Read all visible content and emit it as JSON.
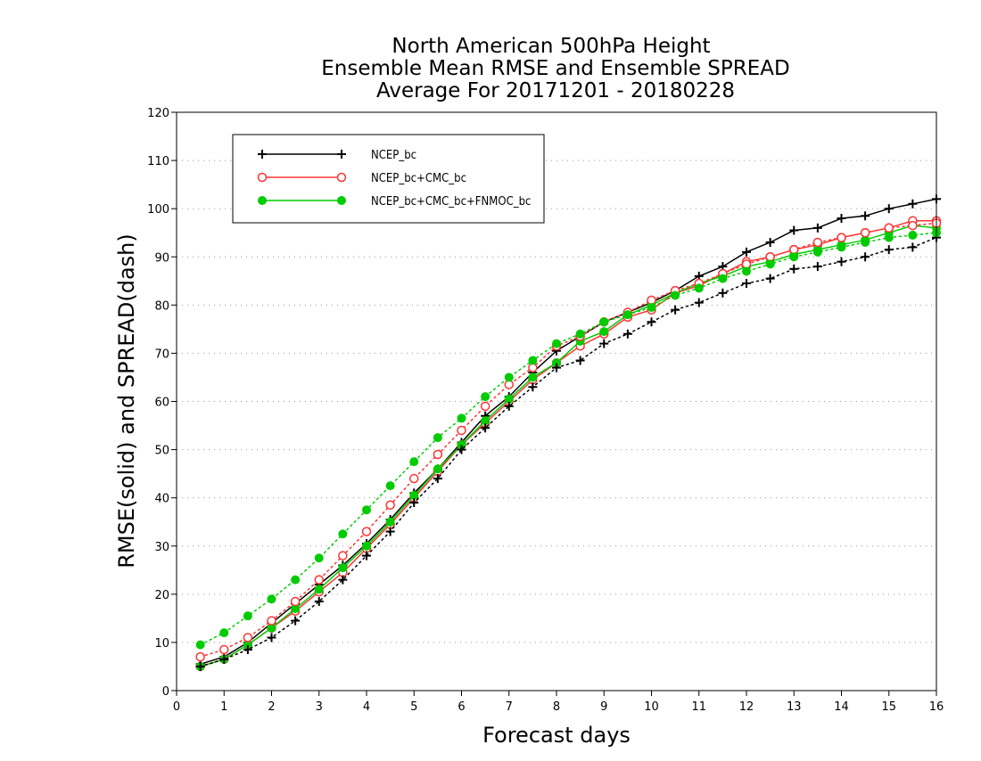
{
  "chart_data": {
    "type": "line",
    "title_lines": [
      "North American 500hPa Height",
      "Ensemble Mean RMSE and Ensemble SPREAD",
      "Average For 20171201 - 20180228"
    ],
    "xlabel": "Forecast days",
    "ylabel": "RMSE(solid) and SPREAD(dash)",
    "xlim": [
      0,
      16
    ],
    "ylim": [
      0,
      120
    ],
    "x_ticks": [
      0,
      1,
      2,
      3,
      4,
      5,
      6,
      7,
      8,
      9,
      10,
      11,
      12,
      13,
      14,
      15,
      16
    ],
    "y_ticks": [
      0,
      10,
      20,
      30,
      40,
      50,
      60,
      70,
      80,
      90,
      100,
      110,
      120
    ],
    "grid": "horizontal dotted",
    "legend_position": "top-left",
    "x": [
      0.5,
      1,
      1.5,
      2,
      2.5,
      3,
      3.5,
      4,
      4.5,
      5,
      5.5,
      6,
      6.5,
      7,
      7.5,
      8,
      8.5,
      9,
      9.5,
      10,
      10.5,
      11,
      11.5,
      12,
      12.5,
      13,
      13.5,
      14,
      14.5,
      15,
      15.5,
      16
    ],
    "series": [
      {
        "name": "NCEP_bc",
        "metric": "RMSE",
        "style": "solid",
        "marker": "plus",
        "color": "#000000",
        "values": [
          5.5,
          7,
          10,
          14,
          18,
          22,
          26,
          30.5,
          35.5,
          41,
          46,
          51.5,
          57,
          61,
          66,
          70.5,
          73.5,
          76.5,
          78.5,
          80.5,
          83,
          86,
          88,
          91,
          93,
          95.5,
          96,
          98,
          98.5,
          100,
          101,
          102
        ]
      },
      {
        "name": "NCEP_bc+CMC_bc",
        "metric": "RMSE",
        "style": "solid",
        "marker": "open-circle",
        "color": "#ff3333",
        "values": [
          5,
          6.5,
          9.5,
          13,
          16.5,
          20.5,
          24.5,
          29.5,
          34.5,
          40,
          45.5,
          51,
          55.5,
          60,
          64.5,
          68,
          71.5,
          74,
          77.5,
          79,
          82.5,
          84,
          86.5,
          89,
          90,
          91.5,
          92.5,
          94,
          95,
          96,
          97.5,
          97.5
        ]
      },
      {
        "name": "NCEP_bc+CMC_bc+FNMOC_bc",
        "metric": "RMSE",
        "style": "solid",
        "marker": "filled-circle",
        "color": "#00cc00",
        "values": [
          5,
          6.5,
          9.5,
          13,
          17,
          21,
          25.5,
          30,
          35,
          40.5,
          46,
          51,
          56,
          60.5,
          65,
          68,
          72.5,
          74.5,
          78,
          80,
          82.5,
          84.5,
          86,
          88,
          89,
          90.5,
          91.5,
          92.5,
          93.5,
          95,
          96.5,
          96
        ]
      },
      {
        "name": "NCEP_bc",
        "metric": "SPREAD",
        "style": "dotted",
        "marker": "plus",
        "color": "#000000",
        "values": [
          5,
          6.5,
          8.5,
          11,
          14.5,
          18.5,
          23,
          28,
          33,
          39,
          44,
          50,
          54.5,
          59,
          63,
          67,
          68.5,
          72,
          74,
          76.5,
          79,
          80.5,
          82.5,
          84.5,
          85.5,
          87.5,
          88,
          89,
          90,
          91.5,
          92,
          94
        ]
      },
      {
        "name": "NCEP_bc+CMC_bc",
        "metric": "SPREAD",
        "style": "dotted",
        "marker": "open-circle",
        "color": "#ff3333",
        "values": [
          7,
          8.5,
          11,
          14.5,
          18.5,
          23,
          28,
          33,
          38.5,
          44,
          49,
          54,
          59,
          63.5,
          67,
          71.5,
          73.5,
          76.5,
          78.5,
          81,
          83,
          84.5,
          86.5,
          88.5,
          90,
          91.5,
          93,
          94,
          95,
          96,
          96.5,
          97
        ]
      },
      {
        "name": "NCEP_bc+CMC_bc+FNMOC_bc",
        "metric": "SPREAD",
        "style": "dotted",
        "marker": "filled-circle",
        "color": "#00cc00",
        "values": [
          9.5,
          12,
          15.5,
          19,
          23,
          27.5,
          32.5,
          37.5,
          42.5,
          47.5,
          52.5,
          56.5,
          61,
          65,
          68.5,
          72,
          74,
          76.5,
          78,
          79.5,
          82,
          83.5,
          85.5,
          87,
          88.5,
          90,
          91,
          92,
          93,
          94,
          94.5,
          95
        ]
      }
    ]
  }
}
